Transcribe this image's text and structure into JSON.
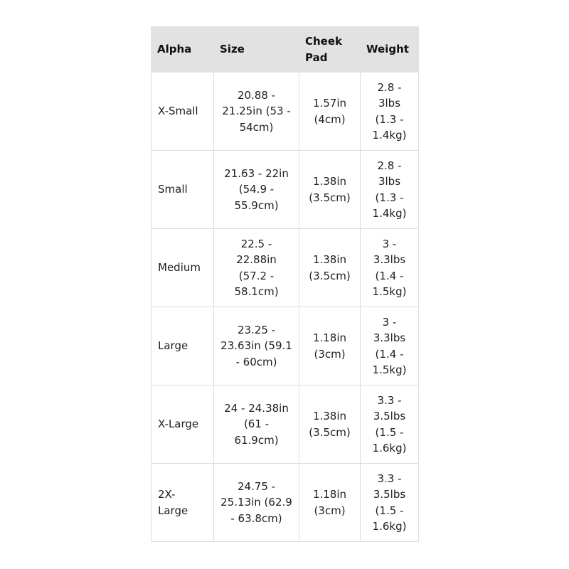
{
  "headers": [
    [
      "Alpha"
    ],
    [
      "Size"
    ],
    [
      "Cheek",
      "Pad"
    ],
    [
      "Weight"
    ]
  ],
  "rows": [
    [
      [
        "X-Small"
      ],
      [
        "20.88 -",
        "21.25in (53 -",
        "54cm)"
      ],
      [
        "1.57in",
        "(4cm)"
      ],
      [
        "2.8 -",
        "3lbs",
        "(1.3 -",
        "1.4kg)"
      ]
    ],
    [
      [
        "Small"
      ],
      [
        "21.63 - 22in",
        "(54.9 -",
        "55.9cm)"
      ],
      [
        "1.38in",
        "(3.5cm)"
      ],
      [
        "2.8 -",
        "3lbs",
        "(1.3 -",
        "1.4kg)"
      ]
    ],
    [
      [
        "Medium"
      ],
      [
        "22.5 -",
        "22.88in",
        "(57.2 -",
        "58.1cm)"
      ],
      [
        "1.38in",
        "(3.5cm)"
      ],
      [
        "3 -",
        "3.3lbs",
        "(1.4 -",
        "1.5kg)"
      ]
    ],
    [
      [
        "Large"
      ],
      [
        "23.25 -",
        "23.63in (59.1",
        "- 60cm)"
      ],
      [
        "1.18in",
        "(3cm)"
      ],
      [
        "3 -",
        "3.3lbs",
        "(1.4 -",
        "1.5kg)"
      ]
    ],
    [
      [
        "X-Large"
      ],
      [
        "24 - 24.38in",
        "(61 -",
        "61.9cm)"
      ],
      [
        "1.38in",
        "(3.5cm)"
      ],
      [
        "3.3 -",
        "3.5lbs",
        "(1.5 -",
        "1.6kg)"
      ]
    ],
    [
      [
        "2X-",
        "Large"
      ],
      [
        "24.75 -",
        "25.13in (62.9",
        "- 63.8cm)"
      ],
      [
        "1.18in",
        "(3cm)"
      ],
      [
        "3.3 -",
        "3.5lbs",
        "(1.5 -",
        "1.6kg)"
      ]
    ]
  ]
}
